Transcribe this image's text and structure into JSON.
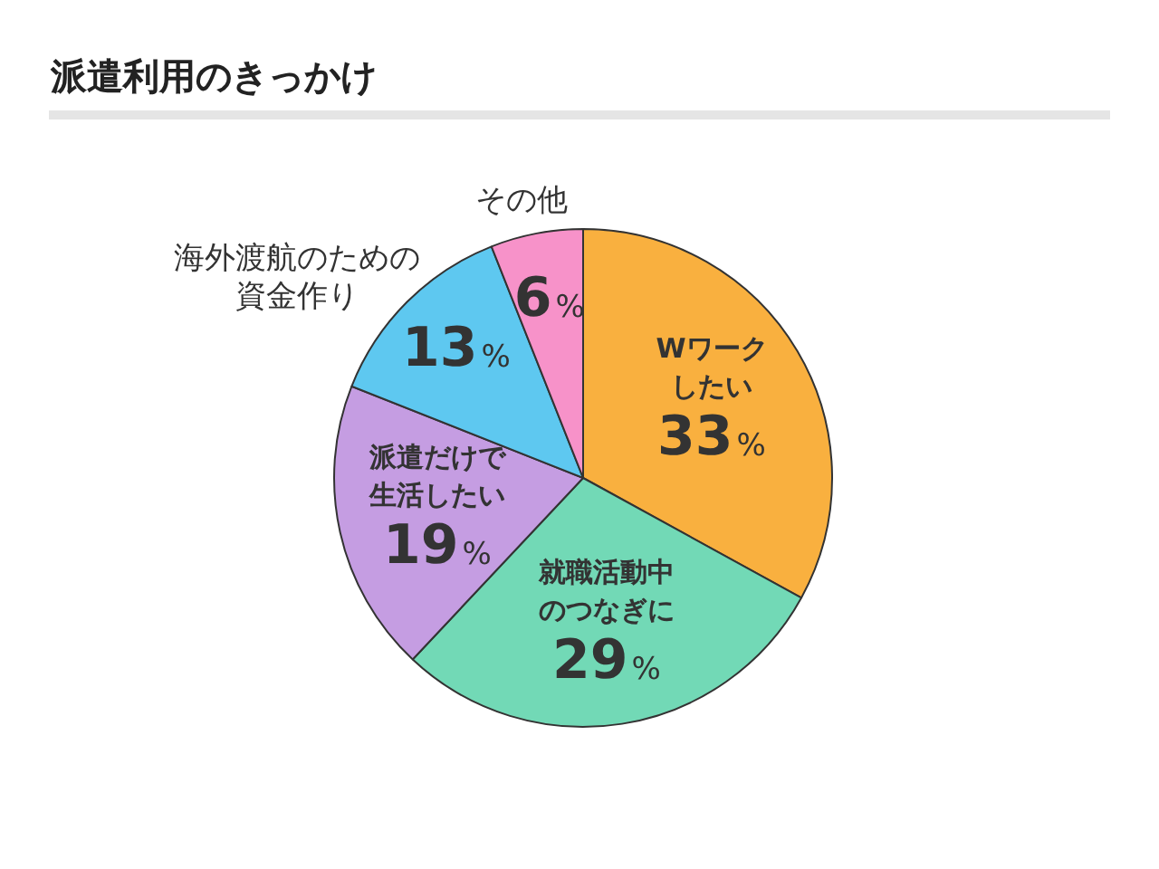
{
  "chart_data": {
    "type": "pie",
    "title": "派遣利用のきっかけ",
    "categories": [
      "Wワークしたい",
      "就職活動中のつなぎに",
      "派遣だけで生活したい",
      "海外渡航のための資金作り",
      "その他"
    ],
    "values": [
      33,
      29,
      19,
      13,
      6
    ],
    "colors": [
      "#f9b03f",
      "#72d9b6",
      "#c59de2",
      "#5ec8f0",
      "#f792c9"
    ],
    "value_labels": [
      "33%",
      "29%",
      "19%",
      "13%",
      "6%"
    ]
  }
}
